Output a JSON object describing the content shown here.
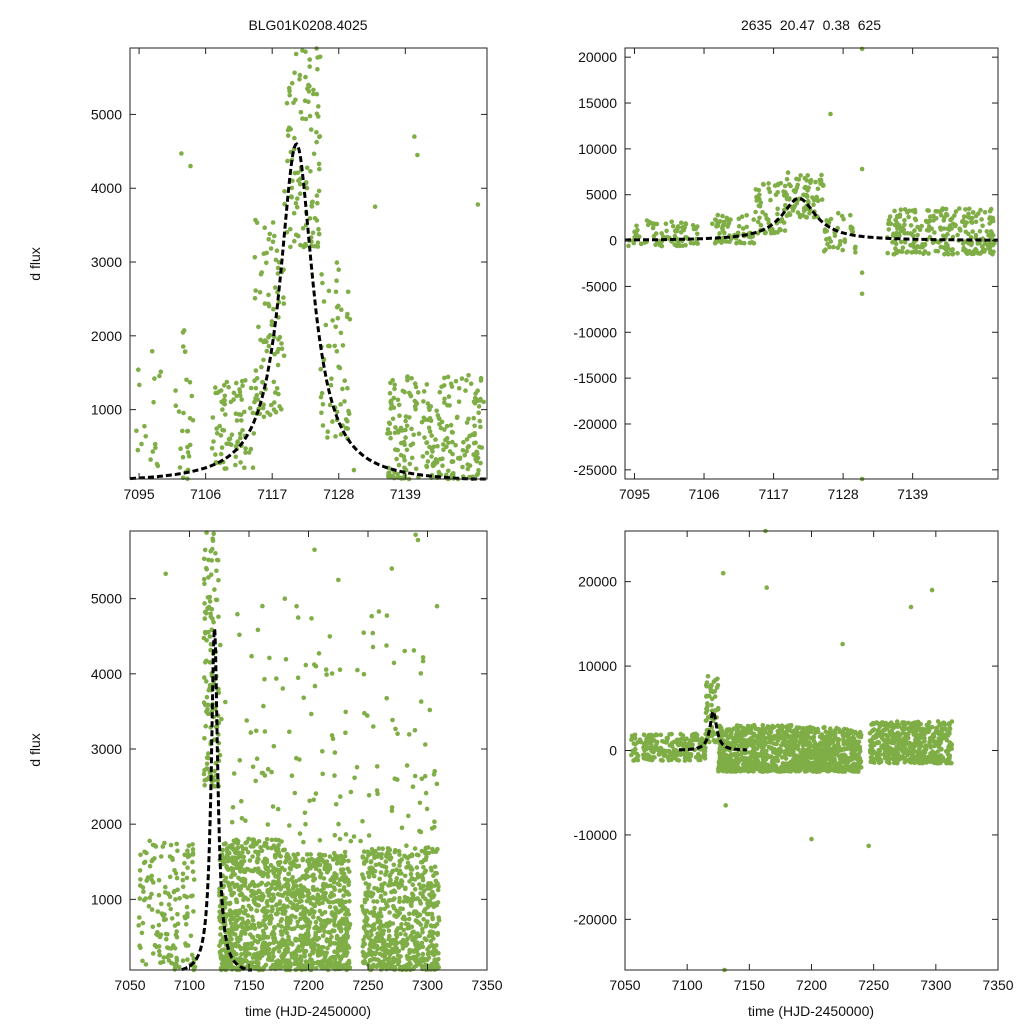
{
  "colors": {
    "points": "#7fad46",
    "model": "#000000",
    "frame": "#222222"
  },
  "chart_data": [
    {
      "id": "p1",
      "type": "scatter",
      "title": "BLG01K0208.4025",
      "xlabel": "",
      "ylabel": "d flux",
      "xlim": [
        7093.5,
        7152.5
      ],
      "ylim": [
        60,
        5900
      ],
      "xticks": [
        7095,
        7106,
        7117,
        7128,
        7139
      ],
      "yticks": [
        1000,
        2000,
        3000,
        4000,
        5000
      ],
      "grid": false,
      "model": {
        "t0": 7121,
        "peak": 4600,
        "halfwidth": 3.3,
        "base": 0,
        "xrange": [
          7093.5,
          7152.5
        ]
      },
      "series": [
        {
          "name": "data",
          "clusters": [
            {
              "x": [
                7094,
                7099
              ],
              "y": [
                60,
                1800
              ],
              "n": 18
            },
            {
              "x": [
                7101,
                7104
              ],
              "y": [
                60,
                2200
              ],
              "n": 28
            },
            {
              "x": [
                7107,
                7114
              ],
              "y": [
                200,
                1400
              ],
              "n": 80
            },
            {
              "x": [
                7114,
                7119
              ],
              "y": [
                900,
                3600
              ],
              "n": 90
            },
            {
              "x": [
                7119,
                7125
              ],
              "y": [
                3200,
                5900
              ],
              "n": 110
            },
            {
              "x": [
                7125,
                7130
              ],
              "y": [
                600,
                3100
              ],
              "n": 60
            },
            {
              "x": [
                7136,
                7152
              ],
              "y": [
                60,
                1500
              ],
              "n": 260
            }
          ]
        },
        {
          "name": "outliers",
          "x": [
            7102,
            7103.5,
            7140.5,
            7141,
            7134,
            7151,
            7122.5,
            7130.5
          ],
          "y": [
            4470,
            4300,
            4700,
            4450,
            3750,
            3780,
            5850,
            180
          ]
        }
      ]
    },
    {
      "id": "p2",
      "type": "scatter",
      "title": "2635  20.47  0.38  625",
      "xlabel": "",
      "ylabel": "",
      "xlim": [
        7093.5,
        7152.5
      ],
      "ylim": [
        -26000,
        21000
      ],
      "xticks": [
        7095,
        7106,
        7117,
        7128,
        7139
      ],
      "yticks": [
        -25000,
        -20000,
        -15000,
        -10000,
        -5000,
        0,
        5000,
        10000,
        15000,
        20000
      ],
      "grid": false,
      "model": {
        "t0": 7121,
        "peak": 4600,
        "halfwidth": 3.3,
        "base": 0,
        "xrange": [
          7093.5,
          7152.5
        ]
      },
      "series": [
        {
          "name": "data",
          "clusters": [
            {
              "x": [
                7094,
                7105
              ],
              "y": [
                -600,
                2200
              ],
              "n": 90
            },
            {
              "x": [
                7107,
                7114
              ],
              "y": [
                -300,
                2800
              ],
              "n": 70
            },
            {
              "x": [
                7114,
                7119
              ],
              "y": [
                800,
                6500
              ],
              "n": 60
            },
            {
              "x": [
                7119,
                7125
              ],
              "y": [
                2500,
                7500
              ],
              "n": 80
            },
            {
              "x": [
                7125,
                7130
              ],
              "y": [
                -1500,
                3000
              ],
              "n": 40
            },
            {
              "x": [
                7135,
                7152
              ],
              "y": [
                -1500,
                3500
              ],
              "n": 260
            }
          ]
        },
        {
          "name": "outliers",
          "x": [
            7131,
            7131,
            7131,
            7126,
            7131,
            7131
          ],
          "y": [
            20900,
            7800,
            -5800,
            13800,
            -26000,
            -3500
          ]
        }
      ]
    },
    {
      "id": "p3",
      "type": "scatter",
      "title": "",
      "xlabel": "time (HJD-2450000)",
      "ylabel": "d flux",
      "xlim": [
        7050,
        7350
      ],
      "ylim": [
        60,
        5900
      ],
      "xticks": [
        7050,
        7100,
        7150,
        7200,
        7250,
        7300,
        7350
      ],
      "yticks": [
        1000,
        2000,
        3000,
        4000,
        5000
      ],
      "grid": false,
      "model": {
        "t0": 7121,
        "peak": 4600,
        "halfwidth": 3.3,
        "base": 0,
        "xrange": [
          7093.5,
          7152.5
        ]
      },
      "series": [
        {
          "name": "data",
          "clusters": [
            {
              "x": [
                7057,
                7105
              ],
              "y": [
                60,
                1800
              ],
              "n": 160
            },
            {
              "x": [
                7112,
                7125
              ],
              "y": [
                2500,
                5900
              ],
              "n": 130
            },
            {
              "x": [
                7125,
                7180
              ],
              "y": [
                60,
                1800
              ],
              "n": 700
            },
            {
              "x": [
                7180,
                7235
              ],
              "y": [
                60,
                1600
              ],
              "n": 650
            },
            {
              "x": [
                7245,
                7310
              ],
              "y": [
                60,
                1700
              ],
              "n": 650
            },
            {
              "x": [
                7125,
                7310
              ],
              "y": [
                1500,
                5000
              ],
              "n": 160
            }
          ]
        },
        {
          "name": "outliers",
          "x": [
            7080,
            7205,
            7225,
            7290,
            7292,
            7308,
            7190,
            7270
          ],
          "y": [
            5330,
            5650,
            5250,
            5850,
            5780,
            4900,
            4900,
            5400
          ]
        }
      ]
    },
    {
      "id": "p4",
      "type": "scatter",
      "title": "",
      "xlabel": "time (HJD-2450000)",
      "ylabel": "",
      "xlim": [
        7050,
        7350
      ],
      "ylim": [
        -26000,
        26000
      ],
      "xticks": [
        7050,
        7100,
        7150,
        7200,
        7250,
        7300,
        7350
      ],
      "yticks": [
        -20000,
        -10000,
        0,
        10000,
        20000
      ],
      "grid": false,
      "model": {
        "t0": 7121,
        "peak": 4600,
        "halfwidth": 3.3,
        "base": 0,
        "xrange": [
          7093.5,
          7148
        ]
      },
      "series": [
        {
          "name": "data",
          "clusters": [
            {
              "x": [
                7055,
                7115
              ],
              "y": [
                -1200,
                2000
              ],
              "n": 220
            },
            {
              "x": [
                7115,
                7125
              ],
              "y": [
                1000,
                8800
              ],
              "n": 60
            },
            {
              "x": [
                7125,
                7185
              ],
              "y": [
                -2500,
                3000
              ],
              "n": 600
            },
            {
              "x": [
                7185,
                7240
              ],
              "y": [
                -2500,
                2800
              ],
              "n": 550
            },
            {
              "x": [
                7247,
                7313
              ],
              "y": [
                -1500,
                3500
              ],
              "n": 500
            }
          ]
        },
        {
          "name": "outliers",
          "x": [
            7129,
            7130,
            7163,
            7164,
            7225,
            7280,
            7297,
            7131,
            7200,
            7246
          ],
          "y": [
            21000,
            -26000,
            26000,
            19300,
            12600,
            17000,
            19000,
            -6500,
            -10500,
            -11300
          ]
        }
      ]
    }
  ]
}
